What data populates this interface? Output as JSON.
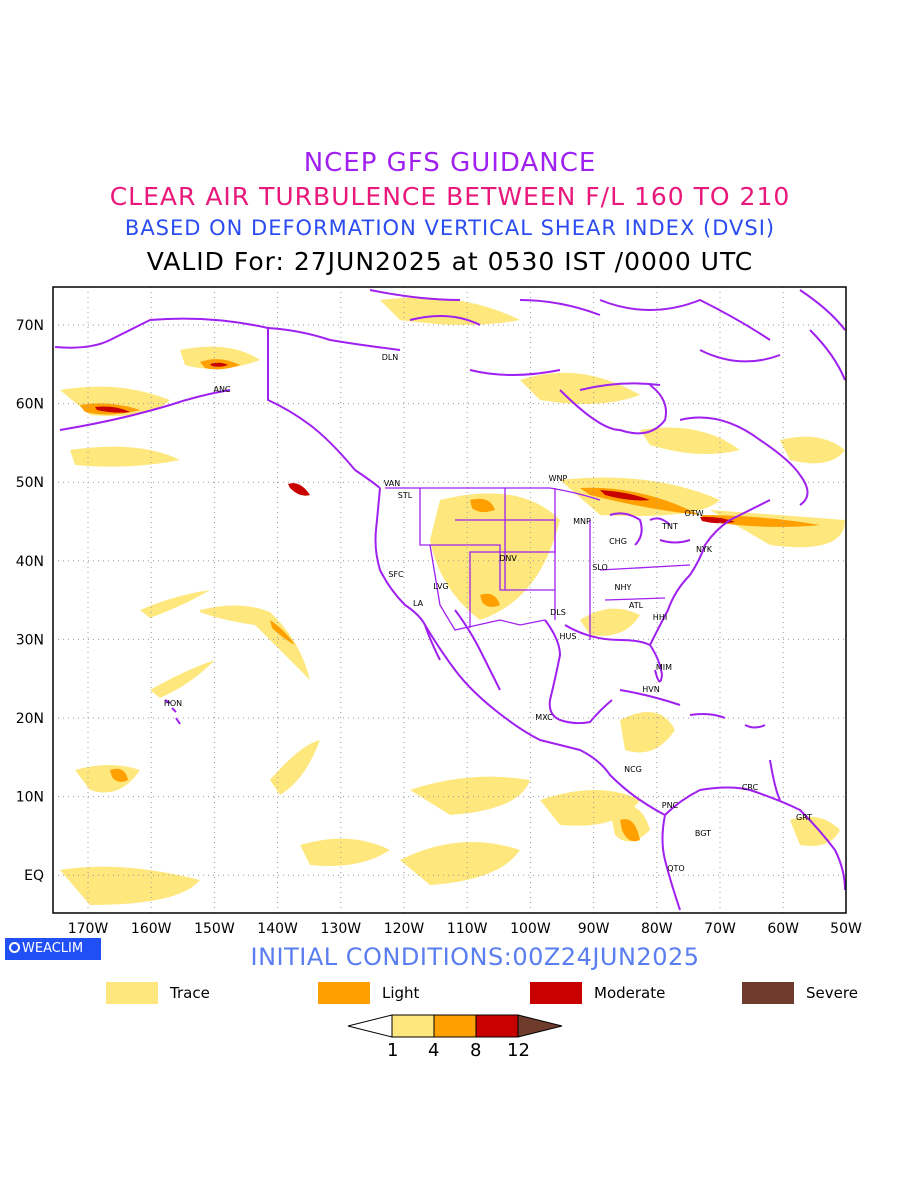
{
  "titles": {
    "line1": "NCEP GFS GUIDANCE",
    "line2": "CLEAR AIR TURBULENCE BETWEEN F/L 160 TO 210",
    "line3": "BASED ON DEFORMATION VERTICAL SHEAR INDEX (DVSI)",
    "line4": "VALID For: 27JUN2025 at 0530 IST /0000 UTC"
  },
  "axes": {
    "lon_labels": [
      "170W",
      "160W",
      "150W",
      "140W",
      "130W",
      "120W",
      "110W",
      "100W",
      "90W",
      "80W",
      "70W",
      "60W",
      "50W"
    ],
    "lat_labels": [
      "70N",
      "60N",
      "50N",
      "40N",
      "30N",
      "20N",
      "10N",
      "EQ"
    ]
  },
  "stations": [
    "DLN",
    "ANC",
    "VAN",
    "STL",
    "WNP",
    "OTW",
    "TNT",
    "NYK",
    "MNP",
    "CHG",
    "DNV",
    "SLO",
    "SFC",
    "LVG",
    "LA",
    "NHY",
    "ATL",
    "HHI",
    "DLS",
    "HUS",
    "MIM",
    "HVN",
    "HON",
    "MXC",
    "NCG",
    "CRC",
    "GRT",
    "PNC",
    "BGT",
    "QTO"
  ],
  "badge": "WEACLIM",
  "initial_conditions": "INITIAL CONDITIONS:00Z24JUN2025",
  "legend": [
    {
      "label": "Trace",
      "color": "#fee87e"
    },
    {
      "label": "Light",
      "color": "#ff9f00"
    },
    {
      "label": "Moderate",
      "color": "#c80000"
    },
    {
      "label": "Severe",
      "color": "#6e3b2c"
    }
  ],
  "colorbar": {
    "ticks": [
      "1",
      "4",
      "8",
      "12"
    ]
  },
  "colors": {
    "coast": "#a020f0",
    "trace": "#fee87e",
    "light": "#ff9f00",
    "moderate": "#c80000",
    "severe": "#6e3b2c"
  }
}
